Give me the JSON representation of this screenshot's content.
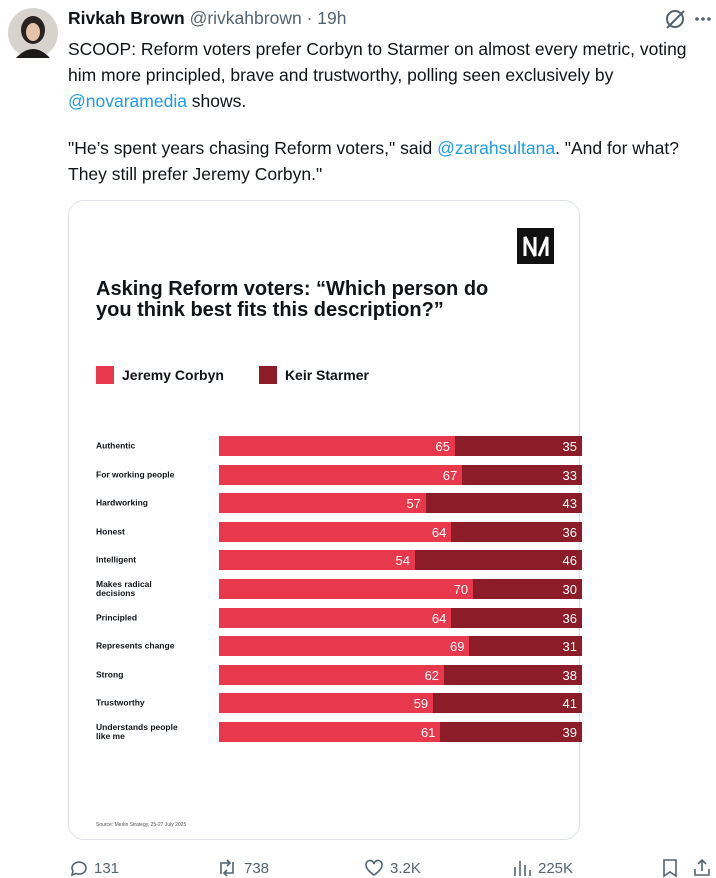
{
  "tweet": {
    "author_name": "Rivkah Brown",
    "handle": "@rivkahbrown",
    "separator": "·",
    "time": "19h",
    "paragraph_1": [
      "SCOOP: Reform voters prefer Corbyn to Starmer on almost every metric, voting him more principled, brave and trustworthy, polling seen exclusively by ",
      "@novaramedia",
      " shows."
    ],
    "paragraph_2": [
      "\"He’s spent years chasing Reform voters,\" said ",
      "@zarahsultana",
      ". \"And for what? They still prefer Jeremy Corbyn.\""
    ],
    "replies": "131",
    "reposts": "738",
    "likes": "3.2K",
    "views": "225K"
  },
  "chart_data": {
    "type": "stacked-bar-horizontal",
    "title": "Asking Reform voters: “Which person do you think best fits this description?”",
    "categories": [
      "Authentic",
      "For working people",
      "Hardworking",
      "Honest",
      "Intelligent",
      "Makes radical decisions",
      "Principled",
      "Represents change",
      "Strong",
      "Trustworthy",
      "Understands people like me"
    ],
    "series": [
      {
        "name": "Jeremy Corbyn",
        "color": "#e8384b",
        "values": [
          65,
          67,
          57,
          64,
          54,
          70,
          64,
          69,
          62,
          59,
          61
        ]
      },
      {
        "name": "Keir Starmer",
        "color": "#8c1c27",
        "values": [
          35,
          33,
          43,
          36,
          46,
          30,
          36,
          31,
          38,
          41,
          39
        ]
      }
    ],
    "source": "Source: Merlin Strategy, 25-27 July 2025"
  }
}
